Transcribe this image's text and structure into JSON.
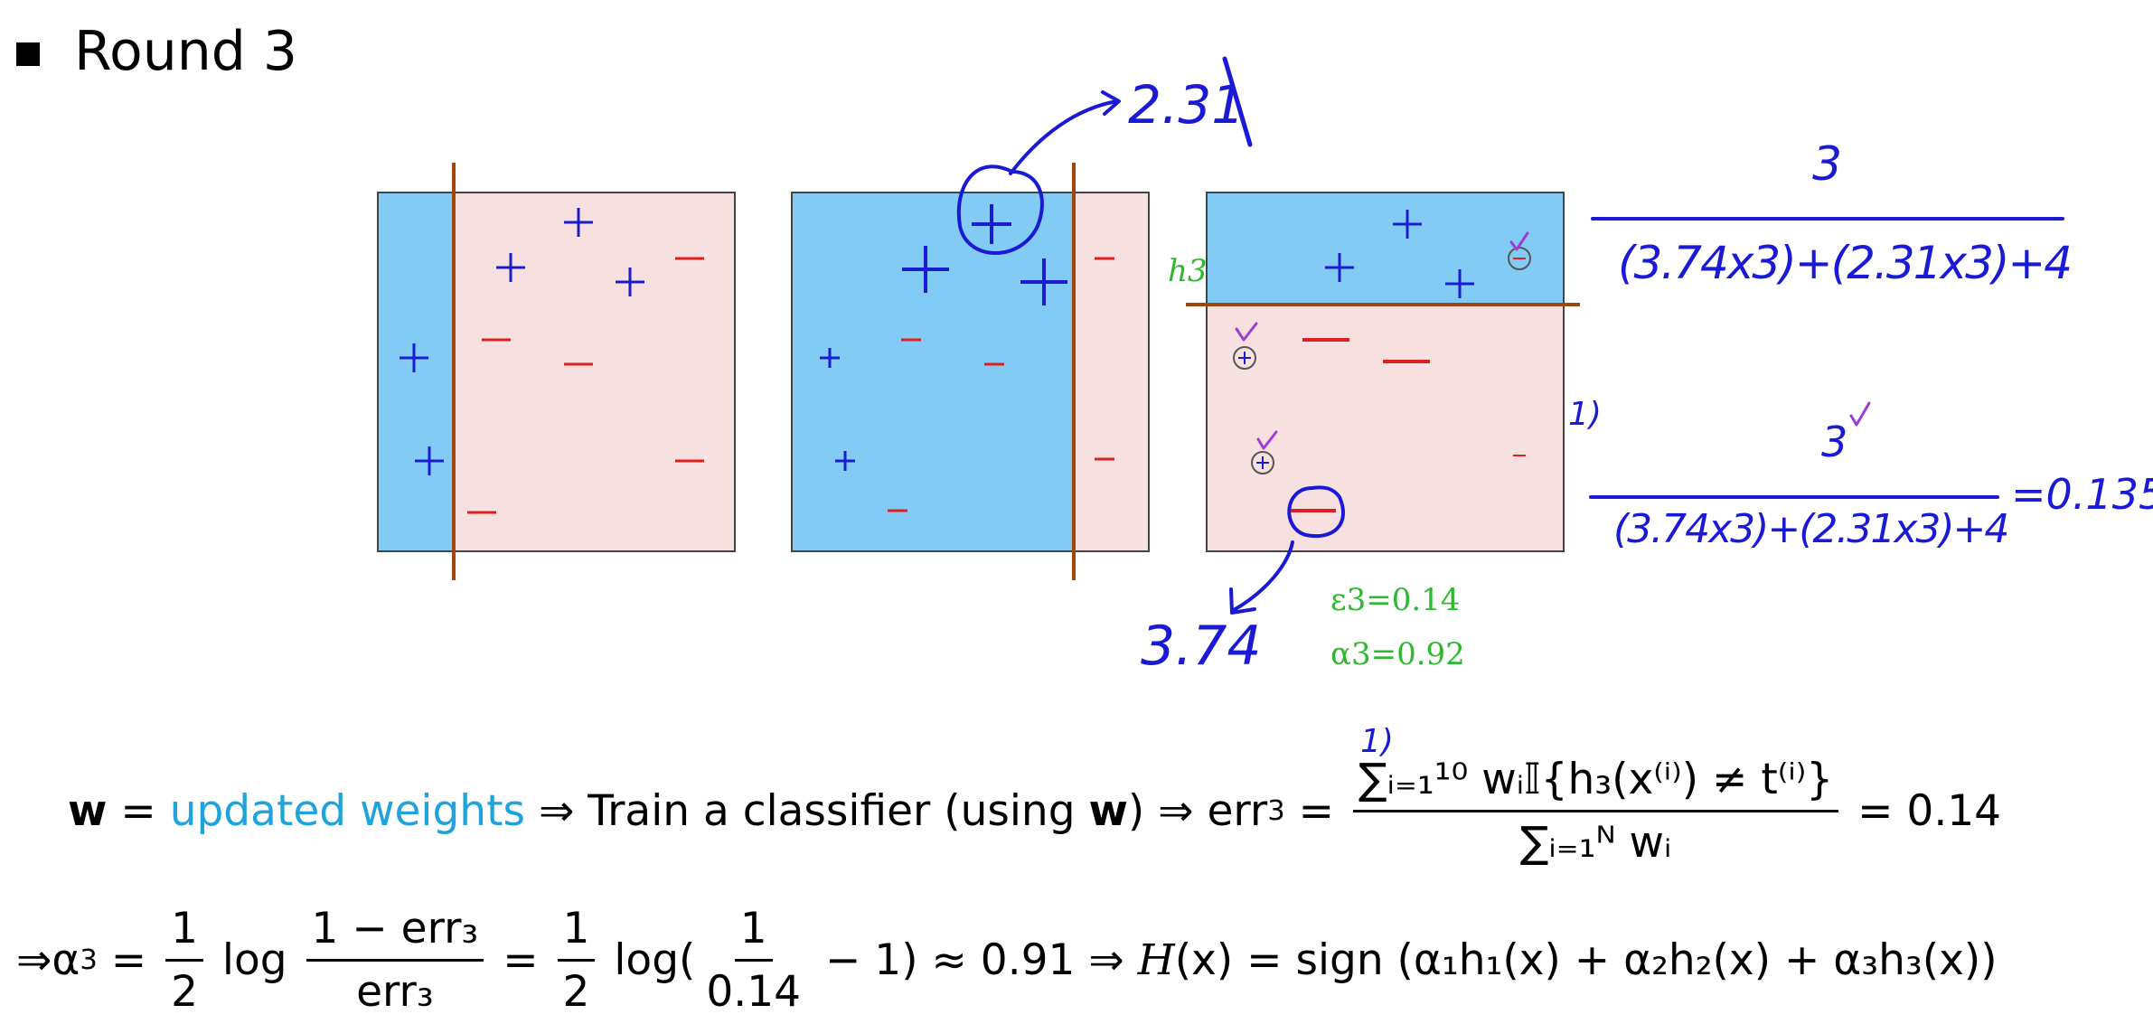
{
  "heading": "Round 3",
  "colors": {
    "positive_region": "#82cbf5",
    "negative_region": "#f7e0e0",
    "plus_mark": "#1b1bd0",
    "minus_mark": "#e02020",
    "stump_line": "#a0460f",
    "ink_blue": "#1a1ad6",
    "ink_green": "#2fb82f",
    "ink_purple": "#9b3ed6"
  },
  "panels": [
    {
      "name": "round1-panel"
    },
    {
      "name": "round2-panel"
    },
    {
      "name": "round3-panel",
      "stump_label": "h3"
    }
  ],
  "annotations": {
    "weight_plus": "2.31",
    "weight_minus": "3.74",
    "epsilon": "ε3=0.14",
    "alpha": "α3=0.92",
    "numerator_top": "3",
    "denominator_top": "(3.74x3)+(2.31x3)+4",
    "numerator_mid": "3",
    "denominator_mid": "(3.74x3)+(2.31x3)+4",
    "result_mid": "=0.135",
    "one_mark_a": "1)",
    "one_mark_b": "1)"
  },
  "equation1": {
    "w": "w",
    "eq1": " = ",
    "updated_weights": "updated weights",
    "arrow_train": " ⇒ Train a classifier (using ",
    "w2": "w",
    "close_paren_arrow": ") ⇒ err",
    "err_sub": "3",
    "eq2": " = ",
    "numerator": "∑ᵢ₌₁¹⁰ wᵢ𝕀{h₃(x⁽ⁱ⁾) ≠ t⁽ⁱ⁾}",
    "denominator": "∑ᵢ₌₁ᴺ wᵢ",
    "result": " = 0.14"
  },
  "equation2": {
    "prefix": "⇒α",
    "alpha_sub": "3",
    "eq": " = ",
    "half_num": "1",
    "half_den": "2",
    "log1": " log ",
    "frac_num": "1 − err₃",
    "frac_den": "err₃",
    "eq2": " = ",
    "log2": " log(",
    "one_num": "1",
    "one_den": "0.14",
    "minus_one": " − 1) ≈ 0.91 ⇒ ",
    "H": "H",
    "final": "(x) = sign (α₁h₁(x) + α₂h₂(x) + α₃h₃(x))"
  }
}
